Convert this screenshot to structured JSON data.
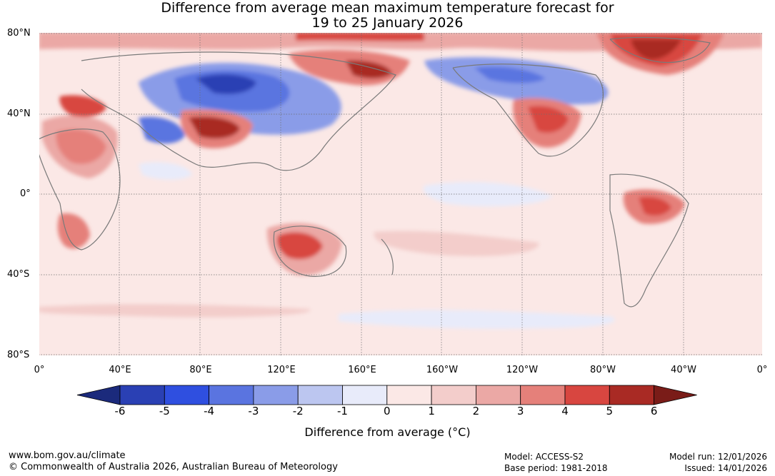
{
  "title": {
    "line1": "Difference from average mean maximum temperature forecast for",
    "line2": "19 to 25 January 2026"
  },
  "map": {
    "lat_labels": [
      "80°N",
      "40°N",
      "0°",
      "40°S",
      "80°S"
    ],
    "lon_labels": [
      "0°",
      "40°E",
      "80°E",
      "120°E",
      "160°E",
      "160°W",
      "120°W",
      "80°W",
      "40°W",
      "0°"
    ],
    "colors": {
      "ocean_base": "#fbe8e6",
      "land_outline": "#7a7a7a"
    },
    "anomaly_regions": [
      {
        "region": "arctic-north-america",
        "anomaly": 5
      },
      {
        "region": "arctic-siberia",
        "anomaly": 4
      },
      {
        "region": "central-asia",
        "anomaly": -5
      },
      {
        "region": "tibet",
        "anomaly": 5
      },
      {
        "region": "north-america-west",
        "anomaly": -3
      },
      {
        "region": "southern-us-mexico",
        "anomaly": 4
      },
      {
        "region": "australia-west",
        "anomaly": 5
      },
      {
        "region": "brazil",
        "anomaly": 4
      },
      {
        "region": "southern-africa",
        "anomaly": 4
      },
      {
        "region": "north-africa",
        "anomaly": 3
      },
      {
        "region": "europe-east",
        "anomaly": 4
      }
    ]
  },
  "colorbar": {
    "ticks": [
      "-6",
      "-5",
      "-4",
      "-3",
      "-2",
      "-1",
      "0",
      "1",
      "2",
      "3",
      "4",
      "5",
      "6"
    ],
    "colors": [
      "#1b2a7c",
      "#2a40b4",
      "#2f4fe0",
      "#5a74e0",
      "#8a9ce8",
      "#bcc6f0",
      "#e8ebfa",
      "#fbe8e6",
      "#f3cdcb",
      "#eba8a5",
      "#e5807a",
      "#d84640",
      "#a92a24",
      "#7a1c18"
    ],
    "label": "Difference from average (°C)"
  },
  "footer": {
    "url": "www.bom.gov.au/climate",
    "copyright": "© Commonwealth of Australia 2026, Australian Bureau of Meteorology",
    "model": "Model: ACCESS-S2",
    "base_period": "Base period: 1981-2018",
    "model_run": "Model run: 12/01/2026",
    "issued": "Issued: 14/01/2026"
  }
}
